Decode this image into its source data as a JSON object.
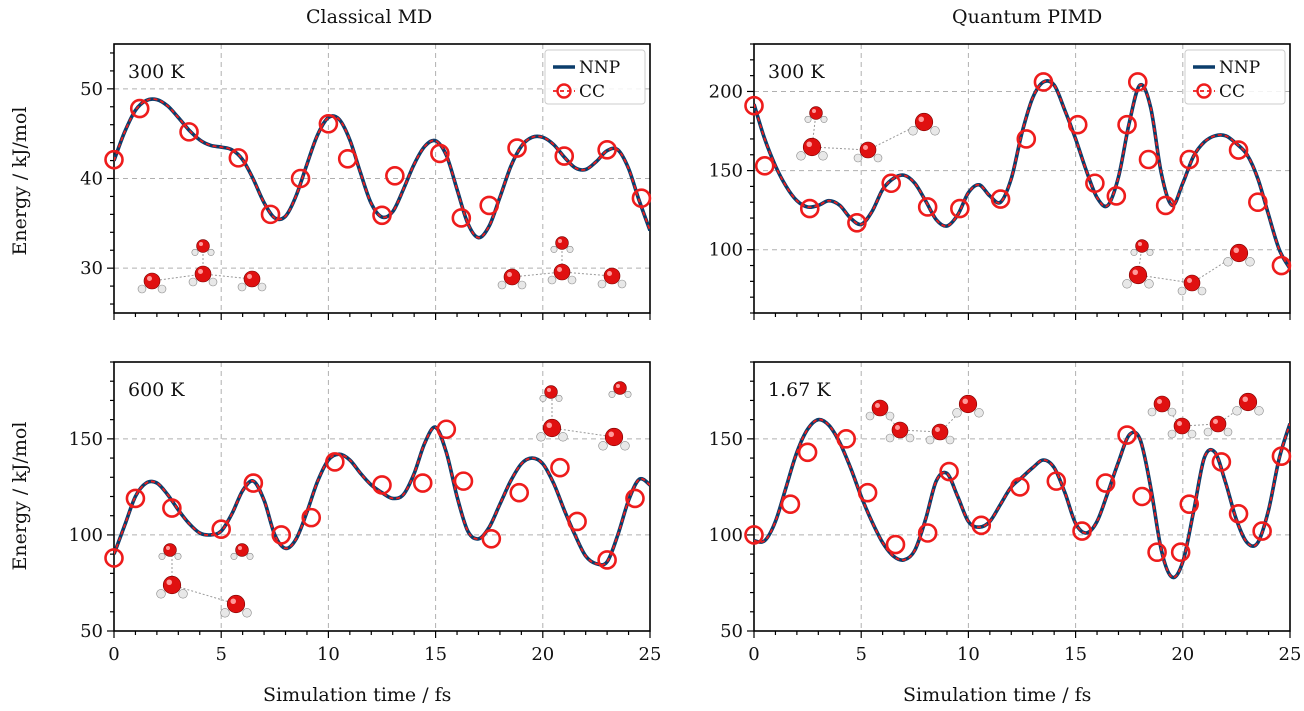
{
  "figure": {
    "col_titles": [
      "Classical MD",
      "Quantum PIMD"
    ],
    "xlabel": "Simulation time / fs",
    "ylabel": "Energy / kJ/mol",
    "legend": [
      "NNP",
      "CC"
    ],
    "colors": {
      "nnp": "#0b3d6b",
      "cc": "#ee1c1c",
      "grid": "#b0b0b0"
    }
  },
  "chart_data": [
    {
      "type": "line",
      "panel": "Classical MD",
      "annotation": "300 K",
      "legend": "top-right",
      "xlim": [
        0,
        25
      ],
      "ylim": [
        25,
        55
      ],
      "xticks": [
        0,
        5,
        10,
        15,
        20,
        25
      ],
      "yticks": [
        30,
        40,
        50
      ],
      "grid": true,
      "series": [
        {
          "name": "NNP",
          "x": [
            0,
            0.5,
            1,
            1.5,
            2,
            2.5,
            3,
            3.5,
            4,
            4.5,
            5,
            5.5,
            6,
            6.5,
            7,
            7.5,
            8,
            8.5,
            9,
            9.5,
            10,
            10.5,
            11,
            11.5,
            12,
            12.5,
            13,
            13.5,
            14,
            14.5,
            15,
            15.5,
            16,
            16.5,
            17,
            17.5,
            18,
            18.5,
            19,
            19.5,
            20,
            20.5,
            21,
            21.5,
            22,
            22.5,
            23,
            23.5,
            24,
            24.5,
            25
          ],
          "y": [
            42,
            45.2,
            47.6,
            48.7,
            48.8,
            48.1,
            46.8,
            45.4,
            44.3,
            43.7,
            43.5,
            43.2,
            42.1,
            39.9,
            37.3,
            35.6,
            35.8,
            38.1,
            41.6,
            44.9,
            46.8,
            46.6,
            44.3,
            40.6,
            37.2,
            35.7,
            36.3,
            38.8,
            41.6,
            43.6,
            44.2,
            42.6,
            38.8,
            35.0,
            33.4,
            34.7,
            37.9,
            41.3,
            43.6,
            44.6,
            44.6,
            43.8,
            42.4,
            41.2,
            41.0,
            41.9,
            43.1,
            43.2,
            41.1,
            37.5,
            34.2
          ]
        },
        {
          "name": "CC",
          "x": [
            0,
            1.2,
            3.5,
            5.8,
            7.3,
            8.7,
            10,
            10.9,
            12.5,
            13.1,
            15.2,
            16.2,
            17.5,
            18.8,
            21,
            23,
            24.6
          ],
          "y": [
            42.1,
            47.8,
            45.2,
            42.3,
            36.0,
            40.0,
            46.1,
            42.2,
            35.9,
            40.3,
            42.8,
            35.6,
            37.0,
            43.4,
            42.5,
            43.2,
            37.8
          ]
        }
      ]
    },
    {
      "type": "line",
      "panel": "Quantum PIMD",
      "annotation": "300 K",
      "legend": "top-right",
      "xlim": [
        0,
        25
      ],
      "ylim": [
        60,
        230
      ],
      "xticks": [
        0,
        5,
        10,
        15,
        20,
        25
      ],
      "yticks": [
        100,
        150,
        200
      ],
      "grid": true,
      "series": [
        {
          "name": "NNP",
          "x": [
            0,
            0.5,
            1,
            1.5,
            2,
            2.5,
            3,
            3.5,
            4,
            4.5,
            5,
            5.5,
            6,
            6.5,
            7,
            7.5,
            8,
            8.5,
            9,
            9.5,
            10,
            10.5,
            11,
            11.5,
            12,
            12.5,
            13,
            13.5,
            14,
            14.5,
            15,
            15.5,
            16,
            16.5,
            17,
            17.5,
            18,
            18.5,
            19,
            19.5,
            20,
            20.5,
            21,
            21.5,
            22,
            22.5,
            23,
            23.5,
            24,
            24.5,
            25
          ],
          "y": [
            192,
            170,
            153,
            140,
            131,
            127,
            128,
            131,
            128,
            120,
            116,
            124,
            138,
            145,
            147,
            142,
            131,
            119,
            115,
            122,
            136,
            141,
            134,
            130,
            145,
            174,
            196,
            206,
            204,
            188,
            170,
            150,
            133,
            128,
            146,
            180,
            204,
            190,
            148,
            128,
            142,
            159,
            168,
            172,
            172,
            167,
            160,
            145,
            122,
            100,
            88
          ]
        },
        {
          "name": "CC",
          "x": [
            0,
            0.5,
            2.6,
            4.8,
            6.4,
            8.1,
            9.6,
            11.5,
            12.7,
            13.5,
            15.1,
            15.9,
            16.9,
            17.4,
            17.9,
            18.4,
            19.2,
            20.3,
            22.6,
            23.5,
            24.6
          ],
          "y": [
            191,
            153,
            126,
            117,
            142,
            127,
            126,
            132,
            170,
            206,
            179,
            142,
            134,
            179,
            206,
            157,
            128,
            157,
            163,
            130,
            90
          ]
        }
      ]
    },
    {
      "type": "line",
      "panel": "Classical MD",
      "annotation": "600 K",
      "xlim": [
        0,
        25
      ],
      "ylim": [
        50,
        190
      ],
      "xticks": [
        0,
        5,
        10,
        15,
        20,
        25
      ],
      "yticks": [
        50,
        100,
        150
      ],
      "grid": true,
      "series": [
        {
          "name": "NNP",
          "x": [
            0,
            0.5,
            1,
            1.5,
            2,
            2.5,
            3,
            3.5,
            4,
            4.5,
            5,
            5.5,
            6,
            6.5,
            7,
            7.5,
            8,
            8.5,
            9,
            9.5,
            10,
            10.5,
            11,
            11.5,
            12,
            12.5,
            13,
            13.5,
            14,
            14.5,
            15,
            15.5,
            16,
            16.5,
            17,
            17.5,
            18,
            18.5,
            19,
            19.5,
            20,
            20.5,
            21,
            21.5,
            22,
            22.5,
            23,
            23.5,
            24,
            24.5,
            25
          ],
          "y": [
            90,
            105,
            120,
            127,
            127,
            121,
            113,
            106,
            101,
            100,
            102,
            111,
            123,
            128,
            118,
            100,
            93,
            98,
            112,
            128,
            139,
            142,
            139,
            132,
            126,
            122,
            119,
            121,
            132,
            148,
            156,
            143,
            120,
            102,
            98,
            104,
            116,
            128,
            137,
            140,
            137,
            127,
            113,
            100,
            89,
            85,
            86,
            100,
            118,
            129,
            126
          ]
        },
        {
          "name": "CC",
          "x": [
            0,
            1,
            2.7,
            5,
            6.5,
            7.8,
            9.2,
            10.3,
            12.5,
            14.4,
            15.5,
            16.3,
            17.6,
            18.9,
            20.8,
            21.6,
            23,
            24.3
          ],
          "y": [
            88,
            119,
            114,
            103,
            127,
            100,
            109,
            138,
            126,
            127,
            155,
            128,
            98,
            122,
            135,
            107,
            87,
            119
          ]
        }
      ]
    },
    {
      "type": "line",
      "panel": "Quantum PIMD",
      "annotation": "1.67 K",
      "xlim": [
        0,
        25
      ],
      "ylim": [
        50,
        190
      ],
      "xticks": [
        0,
        5,
        10,
        15,
        20,
        25
      ],
      "yticks": [
        50,
        100,
        150
      ],
      "grid": true,
      "series": [
        {
          "name": "NNP",
          "x": [
            0,
            0.5,
            1,
            1.5,
            2,
            2.5,
            3,
            3.5,
            4,
            4.5,
            5,
            5.5,
            6,
            6.5,
            7,
            7.5,
            8,
            8.5,
            9,
            9.5,
            10,
            10.5,
            11,
            11.5,
            12,
            12.5,
            13,
            13.5,
            14,
            14.5,
            15,
            15.5,
            16,
            16.5,
            17,
            17.5,
            18,
            18.5,
            19,
            19.5,
            20,
            20.5,
            21,
            21.5,
            22,
            22.5,
            23,
            23.5,
            24,
            24.5,
            25
          ],
          "y": [
            97,
            97,
            107,
            125,
            143,
            155,
            160,
            157,
            148,
            135,
            120,
            107,
            96,
            89,
            87,
            92,
            108,
            128,
            132,
            120,
            107,
            104,
            107,
            116,
            125,
            130,
            135,
            139,
            135,
            122,
            106,
            101,
            107,
            122,
            138,
            152,
            150,
            125,
            92,
            78,
            86,
            112,
            140,
            143,
            127,
            108,
            96,
            96,
            113,
            140,
            158
          ]
        },
        {
          "name": "CC",
          "x": [
            0,
            1.7,
            2.5,
            4.3,
            5.3,
            6.6,
            8.1,
            9.1,
            10.6,
            12.4,
            14.1,
            15.3,
            16.4,
            17.4,
            18.1,
            18.8,
            19.9,
            20.3,
            21.8,
            22.6,
            23.7,
            24.6
          ],
          "y": [
            100,
            116,
            143,
            150,
            122,
            95,
            101,
            133,
            105,
            125,
            128,
            102,
            127,
            152,
            120,
            91,
            91,
            116,
            138,
            111,
            102,
            141
          ]
        }
      ]
    }
  ]
}
